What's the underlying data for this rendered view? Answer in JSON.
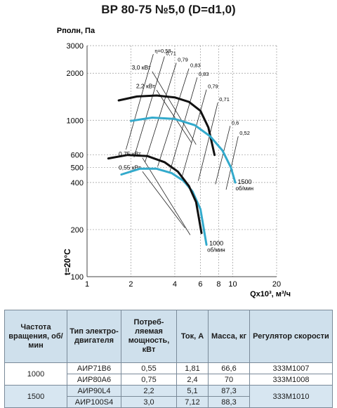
{
  "title": "ВР 80-75 №5,0 (D=d1,0)",
  "chart_data": {
    "type": "line",
    "title": "ВР 80-75 №5,0 (D=d1,0)",
    "ylabel": "Рполн, Па",
    "xlabel": "Qх10³, м³/ч",
    "temp_label": "t=20°С",
    "x_scale": "log",
    "y_scale": "log",
    "xlim": [
      1,
      20
    ],
    "ylim": [
      100,
      3000
    ],
    "x_ticks": [
      1,
      2,
      4,
      6,
      8,
      10,
      20
    ],
    "x_tick_labels": [
      "1",
      "2",
      "4",
      "6",
      "8",
      "10",
      "20"
    ],
    "y_ticks": [
      100,
      200,
      400,
      500,
      600,
      1000,
      2000,
      3000
    ],
    "y_tick_labels": [
      "100",
      "200",
      "400",
      "500",
      "600",
      "1000",
      "2000",
      "3000"
    ],
    "grid": true,
    "speed_colors": {
      "1000": "#33aacc",
      "1500": "#111111"
    },
    "series": [
      {
        "name": "1500 об/мин",
        "color": "#111111",
        "x": [
          1.65,
          2.2,
          3.0,
          4.0,
          5.0,
          6.0,
          6.8,
          7.5
        ],
        "y": [
          1340,
          1420,
          1440,
          1400,
          1310,
          1150,
          900,
          600
        ]
      },
      {
        "name": "1000 об/мин",
        "color": "#33aacc",
        "x": [
          1.72,
          2.3,
          3.0,
          3.8,
          4.6,
          5.3,
          6.0,
          6.6
        ],
        "y": [
          450,
          490,
          490,
          460,
          410,
          350,
          270,
          160
        ]
      },
      {
        "color": "#33aacc",
        "x": [
          2.0,
          2.8,
          4.0,
          5.5,
          7.0,
          8.5,
          9.7,
          10.4
        ],
        "y": [
          990,
          1040,
          1020,
          930,
          790,
          640,
          500,
          400
        ]
      },
      {
        "color": "#111111",
        "x": [
          1.4,
          1.9,
          2.6,
          3.4,
          4.2,
          5.0,
          5.6,
          6.1
        ],
        "y": [
          570,
          600,
          590,
          540,
          470,
          380,
          300,
          190
        ]
      }
    ],
    "efficiency_lines": [
      {
        "label": "η=0,58",
        "x": [
          1.85,
          2.85
        ],
        "y": [
          650,
          2650
        ]
      },
      {
        "label": "0,71",
        "x": [
          2.1,
          3.4
        ],
        "y": [
          580,
          2560
        ]
      },
      {
        "label": "0,79",
        "x": [
          2.5,
          4.1
        ],
        "y": [
          540,
          2330
        ]
      },
      {
        "label": "0,83",
        "x": [
          3.05,
          5.0
        ],
        "y": [
          505,
          2140
        ]
      },
      {
        "label": "0,83",
        "x": [
          3.7,
          5.7
        ],
        "y": [
          470,
          1880
        ]
      },
      {
        "label": "0,79",
        "x": [
          4.5,
          6.6
        ],
        "y": [
          440,
          1570
        ]
      },
      {
        "label": "0,71",
        "x": [
          5.8,
          7.9
        ],
        "y": [
          410,
          1300
        ]
      },
      {
        "label": "0,6",
        "x": [
          7.6,
          9.6
        ],
        "y": [
          390,
          920
        ]
      },
      {
        "label": "0,52",
        "x": [
          9.0,
          10.9
        ],
        "y": [
          360,
          790
        ]
      }
    ],
    "power_lines": [
      {
        "label": "3,0 кВт",
        "x": [
          2.8,
          5.6
        ],
        "y": [
          2050,
          700
        ]
      },
      {
        "label": "2,2 кВт",
        "x": [
          3.0,
          5.2
        ],
        "y": [
          1560,
          720
        ]
      },
      {
        "label": "0,75 кВт",
        "x": [
          2.4,
          5.1
        ],
        "y": [
          575,
          185
        ]
      },
      {
        "label": "0,55 кВт",
        "x": [
          2.4,
          4.7
        ],
        "y": [
          470,
          205
        ]
      }
    ],
    "annotations": [
      {
        "text": "1500",
        "text2": "об/мин",
        "x": 10.8,
        "y": 400
      },
      {
        "text": "1000",
        "text2": "об/мин",
        "x": 6.9,
        "y": 162
      }
    ]
  },
  "table": {
    "headers": [
      "Частота вращения, об/мин",
      "Тип электро- двигателя",
      "Потреб- ляемая мощность, кВт",
      "Ток, А",
      "Масса, кг",
      "Регулятор скорости"
    ],
    "rows": [
      {
        "speed": "1000",
        "motor": "АИР71В6",
        "power": "0,55",
        "current": "1,81",
        "mass": "66,6",
        "regulator": "333М1007"
      },
      {
        "motor": "АИР80А6",
        "power": "0,75",
        "current": "2,4",
        "mass": "70",
        "regulator": "333М1008"
      },
      {
        "speed": "1500",
        "motor": "АИР90L4",
        "power": "2,2",
        "current": "5,1",
        "mass": "87,3",
        "regulator": "333М1010"
      },
      {
        "motor": "АИР100S4",
        "power": "3,0",
        "current": "7,12",
        "mass": "88,3"
      }
    ]
  }
}
